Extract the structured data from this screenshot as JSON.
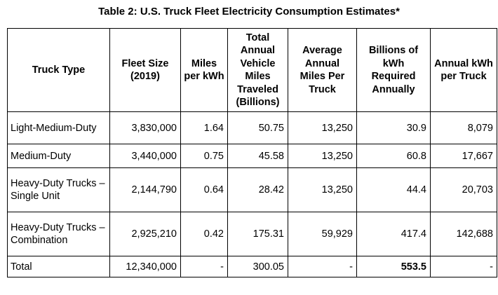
{
  "caption": "Table 2: U.S. Truck Fleet Electricity Consumption Estimates*",
  "headers": {
    "truck_type": "Truck Type",
    "fleet_size": "Fleet Size (2019)",
    "miles_per_kwh": "Miles per kWh",
    "total_vmt": "Total Annual Vehicle Miles Traveled (Billions)",
    "avg_miles": "Average Annual Miles Per Truck",
    "billions_kwh": "Billions of kWh Required Annually",
    "annual_kwh": "Annual kWh per Truck"
  },
  "rows": [
    {
      "truck_type": "Light-Medium-Duty",
      "fleet_size": "3,830,000",
      "miles_per_kwh": "1.64",
      "total_vmt": "50.75",
      "avg_miles": "13,250",
      "billions_kwh": "30.9",
      "annual_kwh": "8,079"
    },
    {
      "truck_type": "Medium-Duty",
      "fleet_size": "3,440,000",
      "miles_per_kwh": "0.75",
      "total_vmt": "45.58",
      "avg_miles": "13,250",
      "billions_kwh": "60.8",
      "annual_kwh": "17,667"
    },
    {
      "truck_type": "Heavy-Duty Trucks – Single Unit",
      "fleet_size": "2,144,790",
      "miles_per_kwh": "0.64",
      "total_vmt": "28.42",
      "avg_miles": "13,250",
      "billions_kwh": "44.4",
      "annual_kwh": "20,703"
    },
    {
      "truck_type": "Heavy-Duty Trucks – Combination",
      "fleet_size": "2,925,210",
      "miles_per_kwh": "0.42",
      "total_vmt": "175.31",
      "avg_miles": "59,929",
      "billions_kwh": "417.4",
      "annual_kwh": "142,688"
    }
  ],
  "total": {
    "truck_type": "Total",
    "fleet_size": "12,340,000",
    "miles_per_kwh": "-",
    "total_vmt": "300.05",
    "avg_miles": "-",
    "billions_kwh": "553.5",
    "annual_kwh": "-"
  }
}
